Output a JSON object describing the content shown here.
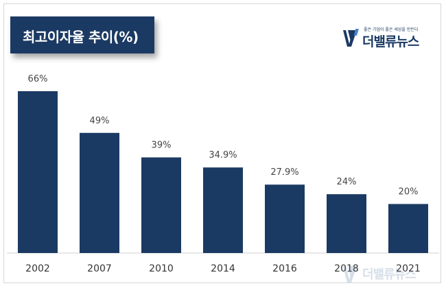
{
  "title": "최고이자율 추이(%)",
  "logo": {
    "name": "더밸류뉴스",
    "tagline": "좋은 기업이 좋은 세상을 만든다",
    "icon": "logo-mark-icon"
  },
  "watermark": {
    "name": "더밸류뉴스"
  },
  "colors": {
    "bar": "#1b3a63",
    "title_bg": "#1b3a63",
    "label": "#444444"
  },
  "chart_data": {
    "type": "bar",
    "title": "최고이자율 추이(%)",
    "categories": [
      "2002",
      "2007",
      "2010",
      "2014",
      "2016",
      "2018",
      "2021"
    ],
    "values": [
      66,
      49,
      39,
      34.9,
      27.9,
      24,
      20
    ],
    "value_labels": [
      "66%",
      "49%",
      "39%",
      "34.9%",
      "27.9%",
      "24%",
      "20%"
    ],
    "xlabel": "",
    "ylabel": "",
    "ylim": [
      0,
      66
    ],
    "grid": false,
    "legend": "none"
  }
}
